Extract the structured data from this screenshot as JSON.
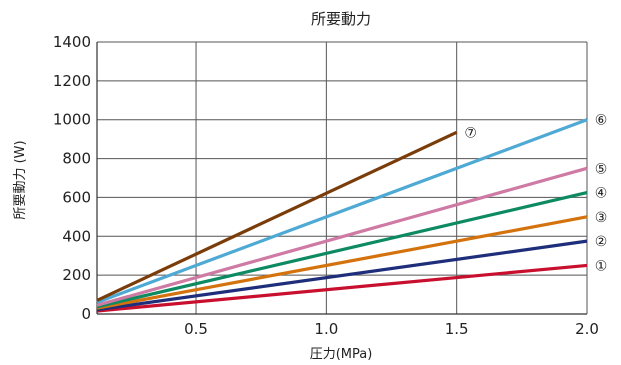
{
  "chart_data": {
    "type": "line",
    "title": "所要動力",
    "xlabel": "圧力(MPa)",
    "ylabel": "所要動力 (W)",
    "xlim": [
      0.12,
      2.0
    ],
    "ylim": [
      0,
      1400
    ],
    "x_ticks": [
      0.5,
      1.0,
      1.5,
      2.0
    ],
    "x_tick_labels": [
      "0.5",
      "1.0",
      "1.5",
      "2.0"
    ],
    "y_ticks": [
      0,
      200,
      400,
      600,
      800,
      1000,
      1200,
      1400
    ],
    "y_tick_labels": [
      "0",
      "200",
      "400",
      "600",
      "800",
      "1000",
      "1200",
      "1400"
    ],
    "grid": true,
    "series": [
      {
        "name": "①",
        "color": "#c8102e",
        "points": [
          [
            0.12,
            15
          ],
          [
            2.0,
            250
          ]
        ]
      },
      {
        "name": "②",
        "color": "#1f2e7a",
        "points": [
          [
            0.12,
            22
          ],
          [
            2.0,
            375
          ]
        ]
      },
      {
        "name": "③",
        "color": "#d4730e",
        "points": [
          [
            0.12,
            30
          ],
          [
            2.0,
            500
          ]
        ]
      },
      {
        "name": "④",
        "color": "#0e8a62",
        "points": [
          [
            0.12,
            37
          ],
          [
            2.0,
            625
          ]
        ]
      },
      {
        "name": "⑤",
        "color": "#cf7aa4",
        "points": [
          [
            0.12,
            45
          ],
          [
            2.0,
            750
          ]
        ]
      },
      {
        "name": "⑥",
        "color": "#4ea9d4",
        "points": [
          [
            0.12,
            60
          ],
          [
            2.0,
            1000
          ]
        ]
      },
      {
        "name": "⑦",
        "color": "#7a3d0a",
        "points": [
          [
            0.12,
            70
          ],
          [
            1.5,
            935
          ]
        ]
      }
    ]
  }
}
